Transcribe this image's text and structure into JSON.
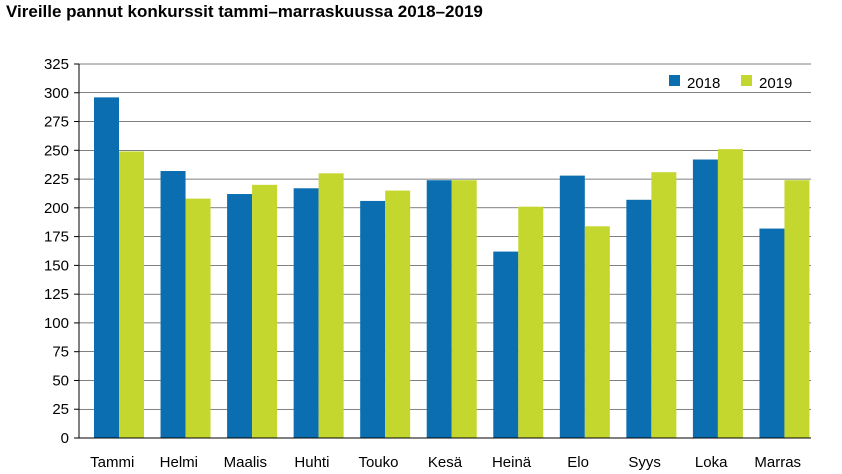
{
  "chart_data": {
    "type": "bar",
    "title": "Vireille pannut konkurssit tammi–marraskuussa 2018–2019",
    "xlabel": "",
    "ylabel": "",
    "categories": [
      "Tammi",
      "Helmi",
      "Maalis",
      "Huhti",
      "Touko",
      "Kesä",
      "Heinä",
      "Elo",
      "Syys",
      "Loka",
      "Marras"
    ],
    "series": [
      {
        "name": "2018",
        "color": "#0a6eb0",
        "values": [
          296,
          232,
          212,
          217,
          206,
          224,
          162,
          228,
          207,
          242,
          182
        ]
      },
      {
        "name": "2019",
        "color": "#c4d72e",
        "values": [
          249,
          208,
          220,
          230,
          215,
          224,
          201,
          184,
          231,
          251,
          224
        ]
      }
    ],
    "ylim": [
      0,
      325
    ],
    "yticks": [
      0,
      25,
      50,
      75,
      100,
      125,
      150,
      175,
      200,
      225,
      250,
      275,
      300,
      325
    ],
    "grid": true,
    "legend": "top-right",
    "axis_color": "#000000",
    "grid_color": "#000000"
  }
}
